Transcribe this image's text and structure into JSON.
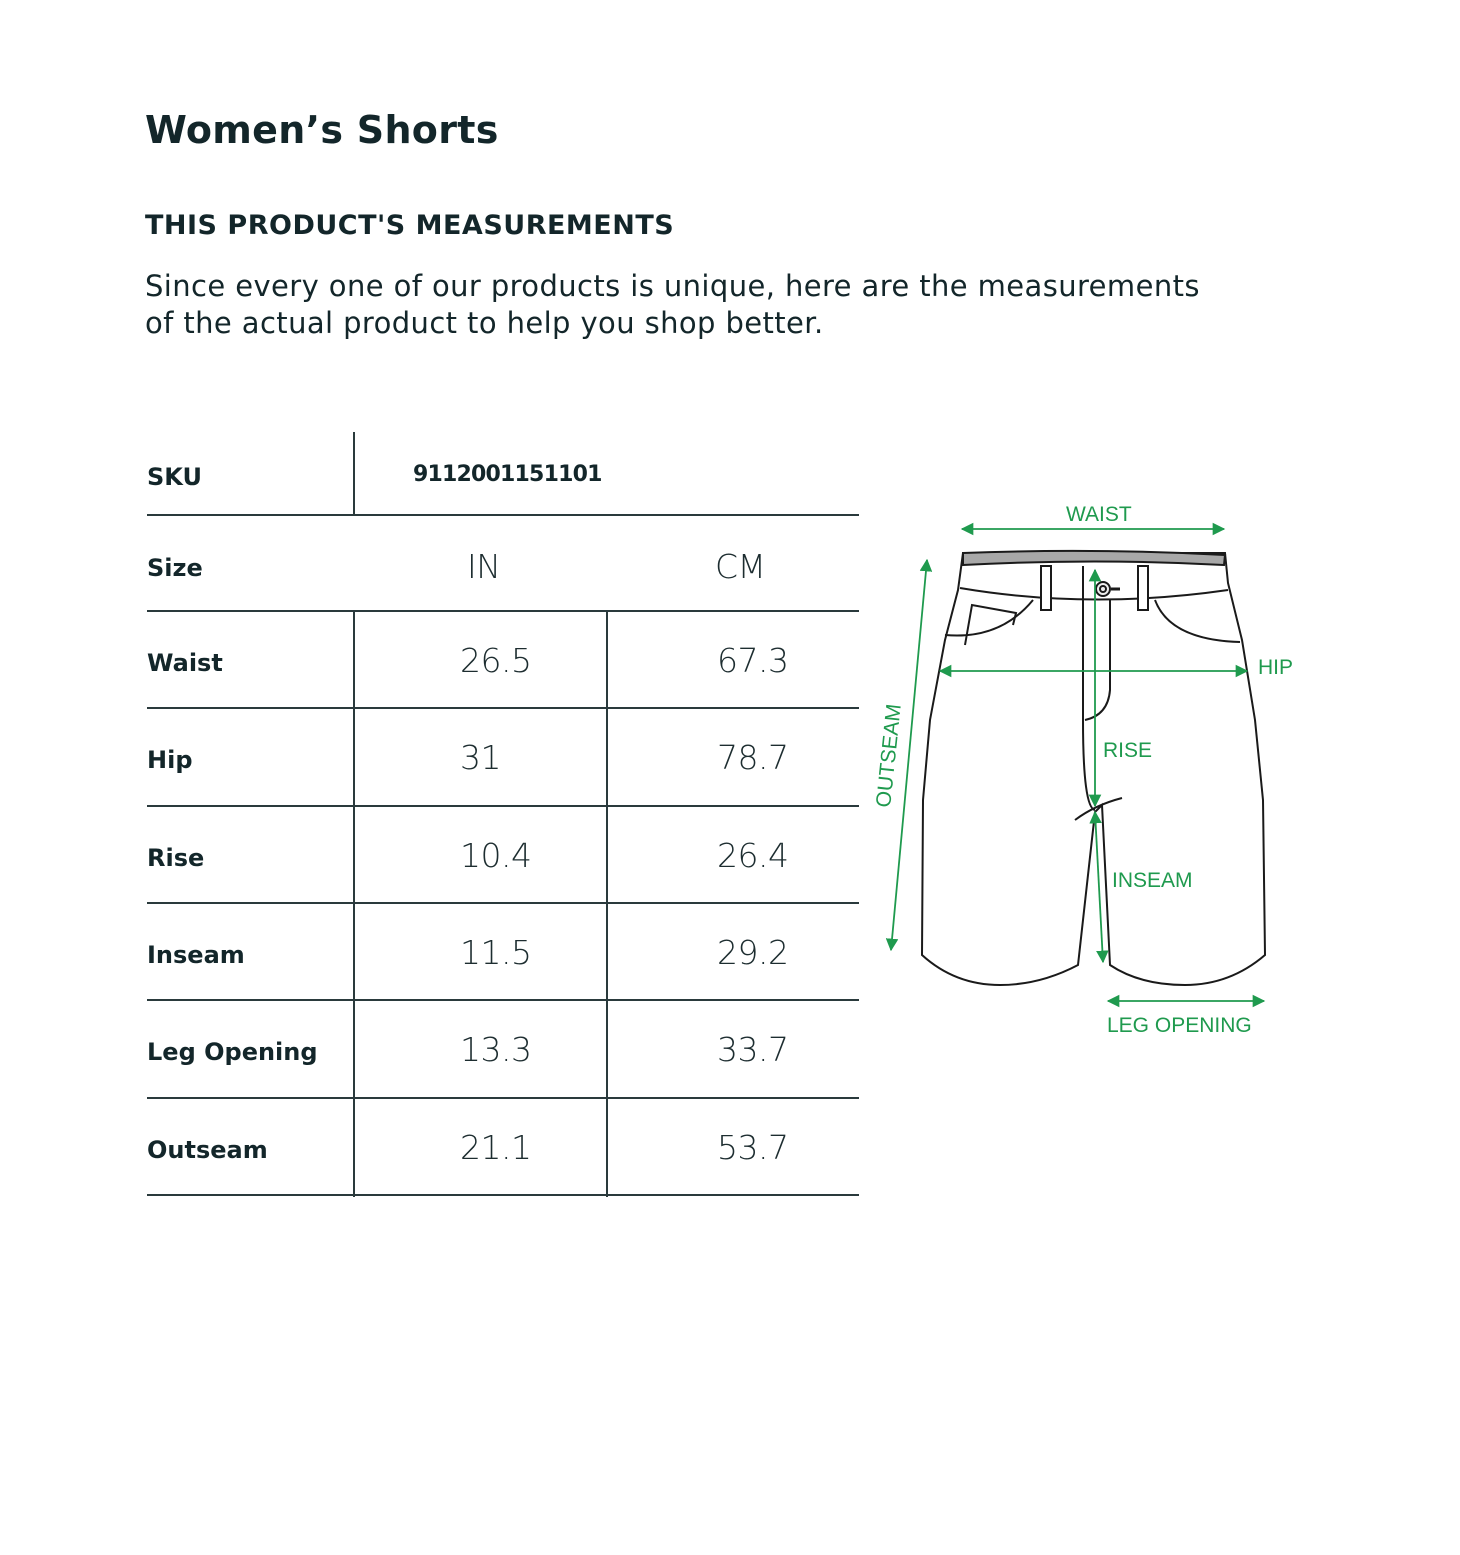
{
  "page": {
    "title": "Women’s Shorts",
    "subtitle": "THIS PRODUCT'S MEASUREMENTS",
    "description_line1": "Since every one of our products is unique, here are the measurements",
    "description_line2": "of the actual product to help you shop better."
  },
  "table": {
    "sku_label": "SKU",
    "sku_value": "9112001151101",
    "size_label": "Size",
    "unit_in": "IN",
    "unit_cm": "CM",
    "rows": [
      {
        "label": "Waist",
        "in": "26.5",
        "cm": "67.3"
      },
      {
        "label": "Hip",
        "in": "31",
        "cm": "78.7"
      },
      {
        "label": "Rise",
        "in": "10.4",
        "cm": "26.4"
      },
      {
        "label": "Inseam",
        "in": "11.5",
        "cm": "29.2"
      },
      {
        "label": "Leg Opening",
        "in": "13.3",
        "cm": "33.7"
      },
      {
        "label": "Outseam",
        "in": "21.1",
        "cm": "53.7"
      }
    ]
  },
  "diagram": {
    "labels": {
      "waist": "WAIST",
      "hip": "HIP",
      "rise": "RISE",
      "inseam": "INSEAM",
      "outseam": "OUTSEAM",
      "leg_opening": "LEG OPENING"
    },
    "accent_color": "#1f9a4e"
  }
}
